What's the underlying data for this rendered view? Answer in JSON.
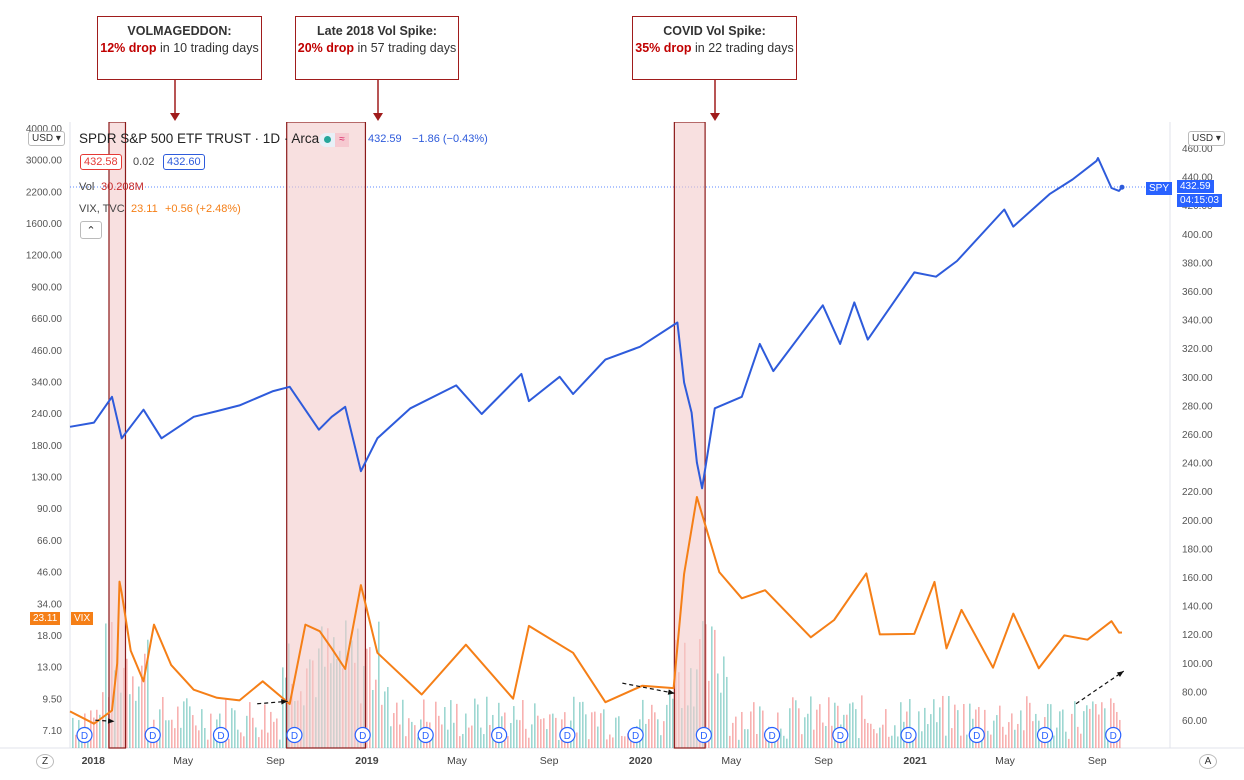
{
  "callouts": [
    {
      "title": "VOLMAGEDDON:",
      "drop": "12% drop",
      "rest": " in 10 trading days"
    },
    {
      "title": "Late 2018 Vol Spike:",
      "drop": "20% drop",
      "rest": " in 57 trading days"
    },
    {
      "title": "COVID Vol Spike:",
      "drop": "35% drop",
      "rest": " in 22 trading days"
    }
  ],
  "header": {
    "symbol": "SPDR S&P 500 ETF TRUST · 1D · Arca",
    "price": "432.59",
    "change": "−1.86 (−0.43%)",
    "bid": "432.58",
    "spread": "0.02",
    "ask": "432.60",
    "vol_label": "Vol",
    "vol_value": "30.208M",
    "vix_label": "VIX, TVC",
    "vix_value": "23.11",
    "vix_change": "+0.56 (+2.48%)",
    "currency": "USD",
    "collapse_glyph": "⌃"
  },
  "tags": {
    "spy_symbol": "SPY",
    "spy_price": "432.59",
    "spy_time": "04:15:03",
    "vix_price": "23.11",
    "vix_symbol": "VIX"
  },
  "footer": {
    "left_btn": "Z",
    "right_btn": "A"
  },
  "colors": {
    "spy": "#2e5bdb",
    "vix": "#f57f17",
    "highlight_fill": "#f4cccc",
    "highlight_border": "#8b1a1a",
    "vol_up": "#26a69a",
    "vol_down": "#ef5350",
    "arrow": "#a01c1c"
  },
  "chart_data": {
    "type": "line",
    "x_ticks": [
      "2018",
      "May",
      "Sep",
      "2019",
      "May",
      "Sep",
      "2020",
      "May",
      "Sep",
      "2021",
      "May",
      "Sep"
    ],
    "left_axis_ticks": [
      "4000.00",
      "3000.00",
      "2200.00",
      "1600.00",
      "1200.00",
      "900.00",
      "660.00",
      "460.00",
      "340.00",
      "240.00",
      "180.00",
      "130.00",
      "90.00",
      "66.00",
      "46.00",
      "34.00",
      "18.00",
      "13.00",
      "9.50",
      "7.10"
    ],
    "right_axis_ticks": [
      "460.00",
      "440.00",
      "420.00",
      "400.00",
      "380.00",
      "360.00",
      "340.00",
      "320.00",
      "300.00",
      "280.00",
      "260.00",
      "240.00",
      "220.00",
      "200.00",
      "180.00",
      "160.00",
      "140.00",
      "120.00",
      "100.00",
      "80.00",
      "60.00"
    ],
    "right_axis_range": [
      40,
      470
    ],
    "dividend_marker": "D",
    "series": [
      {
        "name": "SPDR S&P 500 ETF TRUST",
        "values": [
          [
            "2017-12-01",
            265
          ],
          [
            "2018-01-02",
            268
          ],
          [
            "2018-01-26",
            286
          ],
          [
            "2018-02-08",
            257
          ],
          [
            "2018-03-09",
            277
          ],
          [
            "2018-04-02",
            257
          ],
          [
            "2018-05-15",
            272
          ],
          [
            "2018-06-15",
            276
          ],
          [
            "2018-07-15",
            280
          ],
          [
            "2018-08-29",
            290
          ],
          [
            "2018-09-20",
            293
          ],
          [
            "2018-10-29",
            263
          ],
          [
            "2018-11-15",
            272
          ],
          [
            "2018-12-03",
            279
          ],
          [
            "2018-12-24",
            234
          ],
          [
            "2019-01-15",
            257
          ],
          [
            "2019-02-28",
            278
          ],
          [
            "2019-04-30",
            294
          ],
          [
            "2019-06-03",
            274
          ],
          [
            "2019-07-26",
            302
          ],
          [
            "2019-08-05",
            283
          ],
          [
            "2019-09-15",
            300
          ],
          [
            "2019-10-03",
            288
          ],
          [
            "2019-11-15",
            312
          ],
          [
            "2019-12-31",
            321
          ],
          [
            "2020-02-19",
            338
          ],
          [
            "2020-02-28",
            296
          ],
          [
            "2020-03-09",
            275
          ],
          [
            "2020-03-16",
            240
          ],
          [
            "2020-03-23",
            222
          ],
          [
            "2020-04-09",
            278
          ],
          [
            "2020-05-15",
            286
          ],
          [
            "2020-06-08",
            323
          ],
          [
            "2020-06-26",
            304
          ],
          [
            "2020-08-31",
            350
          ],
          [
            "2020-09-23",
            323
          ],
          [
            "2020-10-12",
            352
          ],
          [
            "2020-10-30",
            326
          ],
          [
            "2020-12-31",
            373
          ],
          [
            "2021-01-29",
            370
          ],
          [
            "2021-02-26",
            381
          ],
          [
            "2021-04-30",
            417
          ],
          [
            "2021-05-12",
            405
          ],
          [
            "2021-06-30",
            428
          ],
          [
            "2021-07-30",
            438
          ],
          [
            "2021-08-31",
            451
          ],
          [
            "2021-09-02",
            453
          ],
          [
            "2021-09-20",
            432
          ],
          [
            "2021-09-30",
            430
          ],
          [
            "2021-10-04",
            432.59
          ]
        ]
      },
      {
        "name": "VIX",
        "values": [
          [
            "2017-12-01",
            11
          ],
          [
            "2018-01-02",
            9.8
          ],
          [
            "2018-01-26",
            11.1
          ],
          [
            "2018-02-02",
            17.3
          ],
          [
            "2018-02-05",
            37.3
          ],
          [
            "2018-02-08",
            33.5
          ],
          [
            "2018-02-20",
            19.5
          ],
          [
            "2018-03-09",
            14.6
          ],
          [
            "2018-03-23",
            24.9
          ],
          [
            "2018-04-15",
            17
          ],
          [
            "2018-05-15",
            13.5
          ],
          [
            "2018-06-15",
            12.5
          ],
          [
            "2018-07-15",
            12.2
          ],
          [
            "2018-08-15",
            14.6
          ],
          [
            "2018-09-20",
            11.8
          ],
          [
            "2018-10-11",
            24.9
          ],
          [
            "2018-10-30",
            23.4
          ],
          [
            "2018-11-15",
            19.9
          ],
          [
            "2018-12-03",
            16.4
          ],
          [
            "2018-12-24",
            36.1
          ],
          [
            "2019-01-15",
            19.1
          ],
          [
            "2019-03-15",
            12.9
          ],
          [
            "2019-05-13",
            20.6
          ],
          [
            "2019-07-15",
            12.4
          ],
          [
            "2019-08-05",
            24.6
          ],
          [
            "2019-10-03",
            19.1
          ],
          [
            "2019-11-15",
            12
          ],
          [
            "2020-01-03",
            14
          ],
          [
            "2020-02-14",
            13.7
          ],
          [
            "2020-02-28",
            40.1
          ],
          [
            "2020-03-16",
            82.7
          ],
          [
            "2020-04-15",
            40.8
          ],
          [
            "2020-05-15",
            31.9
          ],
          [
            "2020-06-15",
            34.4
          ],
          [
            "2020-08-15",
            22.1
          ],
          [
            "2020-09-15",
            26
          ],
          [
            "2020-10-28",
            40.3
          ],
          [
            "2020-11-15",
            22.7
          ],
          [
            "2020-12-31",
            22.8
          ],
          [
            "2021-01-27",
            37.2
          ],
          [
            "2021-02-12",
            19.9
          ],
          [
            "2021-03-04",
            28.6
          ],
          [
            "2021-04-15",
            16.6
          ],
          [
            "2021-05-12",
            27.6
          ],
          [
            "2021-06-15",
            16.5
          ],
          [
            "2021-07-19",
            22.5
          ],
          [
            "2021-08-19",
            21.6
          ],
          [
            "2021-09-20",
            25.7
          ],
          [
            "2021-09-30",
            23.1
          ],
          [
            "2021-10-04",
            23.11
          ]
        ]
      }
    ]
  }
}
